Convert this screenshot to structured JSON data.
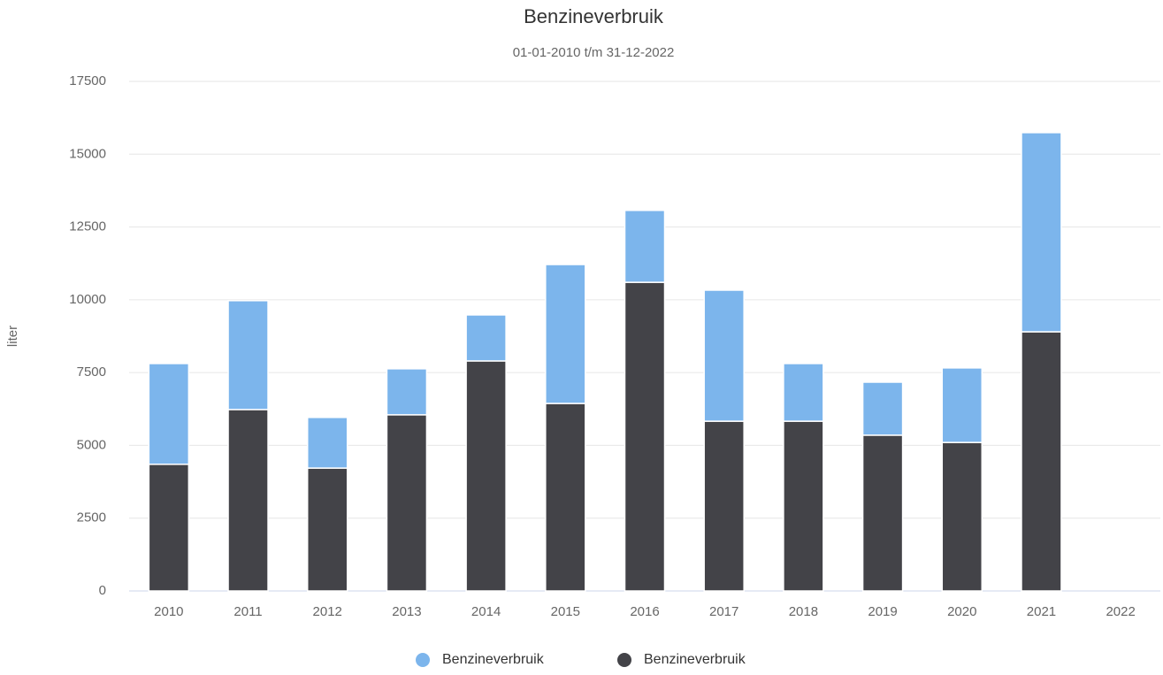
{
  "chart_data": {
    "type": "stacked_bar",
    "title": "Benzineverbruik",
    "subtitle": "01-01-2010 t/m 31-12-2022",
    "y_label": "liter",
    "categories": [
      "2010",
      "2011",
      "2012",
      "2013",
      "2014",
      "2015",
      "2016",
      "2017",
      "2018",
      "2019",
      "2020",
      "2021",
      "2022"
    ],
    "series": [
      {
        "name": "Benzineverbruik",
        "color": "#7cb5ec",
        "values": [
          3460,
          3740,
          1740,
          1580,
          1580,
          4770,
          2470,
          4500,
          1980,
          1820,
          2560,
          6840,
          null
        ]
      },
      {
        "name": "Benzineverbruik",
        "color": "#434348",
        "values": [
          4350,
          6230,
          4220,
          6050,
          7900,
          6440,
          10600,
          5830,
          5830,
          5350,
          5100,
          8900,
          null
        ]
      }
    ],
    "ylim": [
      0,
      17500
    ],
    "yticks": [
      0,
      2500,
      5000,
      7500,
      10000,
      12500,
      15000,
      17500
    ],
    "grid": true
  }
}
